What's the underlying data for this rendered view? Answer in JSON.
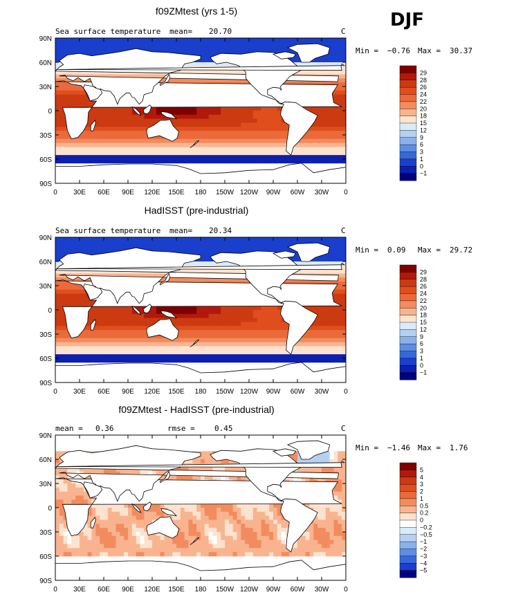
{
  "season": "DJF",
  "panels": [
    {
      "title": "f09ZMtest (yrs 1-5)",
      "field_label": "Sea surface temperature",
      "stat1_label": "mean=",
      "stat1_value": "20.70",
      "stat2_label": "",
      "stat2_value": "",
      "units": "C",
      "min_label": "Min =",
      "min_value": "−0.76",
      "max_label": "Max =",
      "max_value": "30.37",
      "colorbar_ticks": [
        "29",
        "28",
        "26",
        "24",
        "22",
        "20",
        "18",
        "15",
        "12",
        "9",
        "6",
        "3",
        "1",
        "0",
        "−1"
      ],
      "colors": [
        "#7f0000",
        "#b2180b",
        "#cc3a12",
        "#e04e1e",
        "#ec6a3a",
        "#f28c5e",
        "#f9b48f",
        "#fde3cf",
        "#dcebfa",
        "#b6d0f2",
        "#8ab1ec",
        "#5d8ee4",
        "#3868d8",
        "#1a3fcc",
        "#0c1fae",
        "#000080"
      ],
      "field": "sst"
    },
    {
      "title": "HadISST (pre-industrial)",
      "field_label": "Sea surface temperature",
      "stat1_label": "mean=",
      "stat1_value": "20.34",
      "stat2_label": "",
      "stat2_value": "",
      "units": "C",
      "min_label": "Min =",
      "min_value": "0.09",
      "max_label": "Max =",
      "max_value": "29.72",
      "colorbar_ticks": [
        "29",
        "28",
        "26",
        "24",
        "22",
        "20",
        "18",
        "15",
        "12",
        "9",
        "6",
        "3",
        "1",
        "0",
        "−1"
      ],
      "colors": [
        "#7f0000",
        "#b2180b",
        "#cc3a12",
        "#e04e1e",
        "#ec6a3a",
        "#f28c5e",
        "#f9b48f",
        "#fde3cf",
        "#dcebfa",
        "#b6d0f2",
        "#8ab1ec",
        "#5d8ee4",
        "#3868d8",
        "#1a3fcc",
        "#0c1fae",
        "#000080"
      ],
      "field": "sst"
    },
    {
      "title": "f09ZMtest - HadISST (pre-industrial)",
      "field_label": "mean =",
      "stat1_label": "",
      "stat1_value": "0.36",
      "stat2_label": "rmse =",
      "stat2_value": "0.45",
      "units": "C",
      "min_label": "Min =",
      "min_value": "−1.46",
      "max_label": "Max =",
      "max_value": "1.76",
      "colorbar_ticks": [
        "5",
        "4",
        "3",
        "2",
        "1",
        "0.5",
        "0.2",
        "0",
        "−0.2",
        "−0.5",
        "−1",
        "−2",
        "−3",
        "−4",
        "−5"
      ],
      "colors": [
        "#7f0000",
        "#b2180b",
        "#cc3a12",
        "#e04e1e",
        "#ec6a3a",
        "#f28c5e",
        "#f9b48f",
        "#fde3cf",
        "#ffffff",
        "#dcebfa",
        "#b6d0f2",
        "#8ab1ec",
        "#5d8ee4",
        "#3868d8",
        "#1a3fcc",
        "#000080"
      ],
      "field": "diff"
    }
  ],
  "x_tick_labels": [
    "0",
    "30E",
    "60E",
    "90E",
    "120E",
    "150E",
    "180",
    "150W",
    "120W",
    "90W",
    "60W",
    "30W",
    "0"
  ],
  "y_tick_labels": [
    "90N",
    "60N",
    "30N",
    "0",
    "30S",
    "60S",
    "90S"
  ]
}
